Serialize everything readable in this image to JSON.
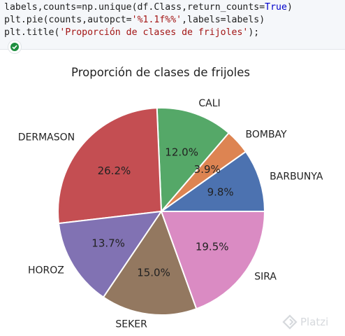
{
  "code": {
    "line1": {
      "a": "labels,counts=np.unique(df.Class,return_counts=",
      "kw": "True",
      "b": ")"
    },
    "line2": {
      "a": "plt.pie(counts,autopct=",
      "str": "'%1.1f%%'",
      "b": ",labels=labels)"
    },
    "line3": {
      "a": "plt.title(",
      "str": "'Proporción de clases de frijoles'",
      "b": ");"
    }
  },
  "run_status_icon": "check-circle-icon",
  "chart_data": {
    "type": "pie",
    "title": "Proporción de clases de frijoles",
    "start_angle_deg": 0,
    "direction": "counterclockwise",
    "slices": [
      {
        "label": "BARBUNYA",
        "pct_label": "9.8%",
        "value": 9.8,
        "color": "#4c72b0"
      },
      {
        "label": "BOMBAY",
        "pct_label": "3.9%",
        "value": 3.9,
        "color": "#dd8452"
      },
      {
        "label": "CALI",
        "pct_label": "12.0%",
        "value": 12.0,
        "color": "#55a868"
      },
      {
        "label": "DERMASON",
        "pct_label": "26.2%",
        "value": 26.2,
        "color": "#c44e52"
      },
      {
        "label": "HOROZ",
        "pct_label": "13.7%",
        "value": 13.7,
        "color": "#8172b3"
      },
      {
        "label": "SEKER",
        "pct_label": "15.0%",
        "value": 15.0,
        "color": "#937860"
      },
      {
        "label": "SIRA",
        "pct_label": "19.5%",
        "value": 19.5,
        "color": "#da8bc3"
      }
    ]
  },
  "watermark": {
    "text": "Platzi",
    "icon": "platzi-logo-icon"
  }
}
